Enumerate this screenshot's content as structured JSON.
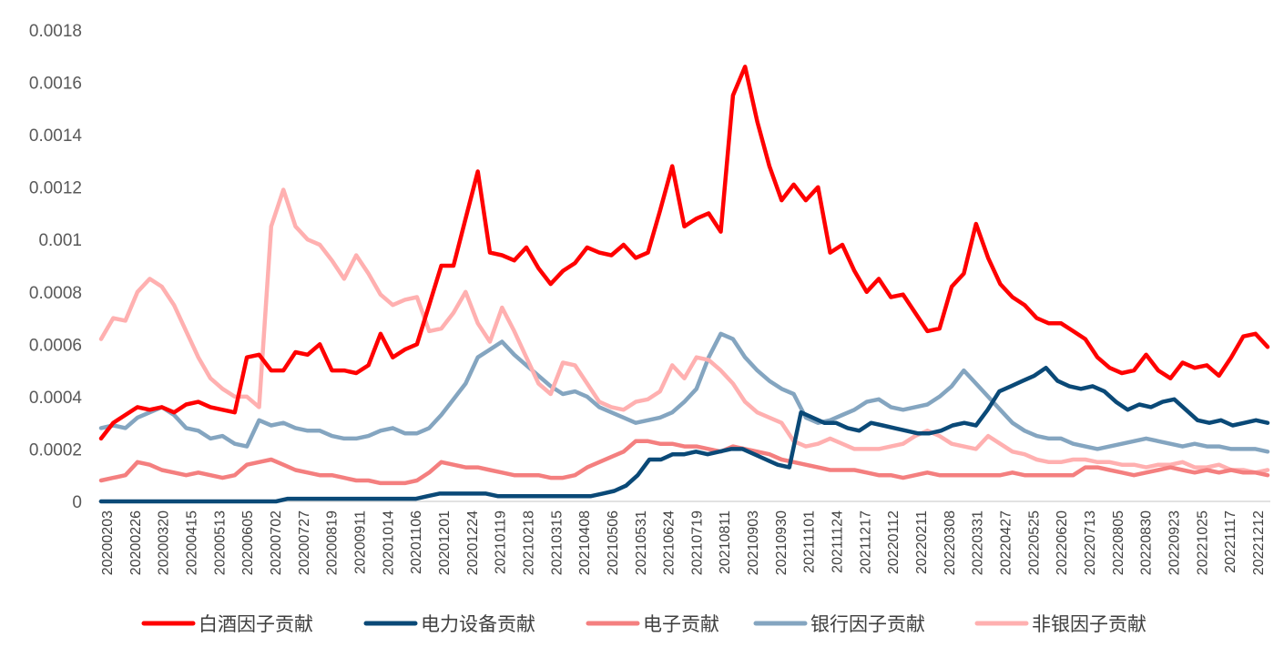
{
  "chart_data": {
    "type": "line",
    "title": "",
    "xlabel": "",
    "ylabel": "",
    "ylim": [
      0,
      0.0018
    ],
    "yticks": [
      "0",
      "0.0002",
      "0.0004",
      "0.0006",
      "0.0008",
      "0.001",
      "0.0012",
      "0.0014",
      "0.0016",
      "0.0018"
    ],
    "xticks": [
      "20200203",
      "20200226",
      "20200320",
      "20200415",
      "20200513",
      "20200605",
      "20200702",
      "20200727",
      "20200819",
      "20200911",
      "20201014",
      "20201106",
      "20201201",
      "20201224",
      "20210119",
      "20210218",
      "20210315",
      "20210408",
      "20210506",
      "20210531",
      "20210624",
      "20210719",
      "20210811",
      "20210903",
      "20210930",
      "20211101",
      "20211124",
      "20211217",
      "20220112",
      "20220211",
      "20220308",
      "20220331",
      "20220427",
      "20220525",
      "20220620",
      "20220713",
      "20220805",
      "20220830",
      "20220923",
      "20221025",
      "20221117",
      "20221212"
    ],
    "legend_position": "bottom",
    "series": [
      {
        "name": "白酒因子贡献",
        "color": "#ff0000",
        "values": [
          0.00024,
          0.0003,
          0.00033,
          0.00036,
          0.00035,
          0.00036,
          0.00034,
          0.00037,
          0.00038,
          0.00036,
          0.00035,
          0.00034,
          0.00055,
          0.00056,
          0.0005,
          0.0005,
          0.00057,
          0.00056,
          0.0006,
          0.0005,
          0.0005,
          0.00049,
          0.00052,
          0.00064,
          0.00055,
          0.00058,
          0.0006,
          0.00075,
          0.0009,
          0.0009,
          0.00108,
          0.00126,
          0.00095,
          0.00094,
          0.00092,
          0.00097,
          0.00089,
          0.00083,
          0.00088,
          0.00091,
          0.00097,
          0.00095,
          0.00094,
          0.00098,
          0.00093,
          0.00095,
          0.00111,
          0.00128,
          0.00105,
          0.00108,
          0.0011,
          0.00103,
          0.00155,
          0.00166,
          0.00145,
          0.00128,
          0.00115,
          0.00121,
          0.00115,
          0.0012,
          0.00095,
          0.00098,
          0.00088,
          0.0008,
          0.00085,
          0.00078,
          0.00079,
          0.00072,
          0.00065,
          0.00066,
          0.00082,
          0.00087,
          0.00106,
          0.00093,
          0.00083,
          0.00078,
          0.00075,
          0.0007,
          0.00068,
          0.00068,
          0.00065,
          0.00062,
          0.00055,
          0.00051,
          0.00049,
          0.0005,
          0.00056,
          0.0005,
          0.00047,
          0.00053,
          0.00051,
          0.00052,
          0.00048,
          0.00055,
          0.00063,
          0.00064,
          0.00059
        ]
      },
      {
        "name": "电力设备贡献",
        "color": "#0a4977",
        "values": [
          0.0,
          0.0,
          0.0,
          0.0,
          0.0,
          0.0,
          0.0,
          0.0,
          0.0,
          0.0,
          0.0,
          0.0,
          0.0,
          0.0,
          0.0,
          0.0,
          1e-05,
          1e-05,
          1e-05,
          1e-05,
          1e-05,
          1e-05,
          1e-05,
          1e-05,
          1e-05,
          1e-05,
          1e-05,
          1e-05,
          2e-05,
          3e-05,
          3e-05,
          3e-05,
          3e-05,
          3e-05,
          2e-05,
          2e-05,
          2e-05,
          2e-05,
          2e-05,
          2e-05,
          2e-05,
          2e-05,
          2e-05,
          3e-05,
          4e-05,
          6e-05,
          0.0001,
          0.00016,
          0.00016,
          0.00018,
          0.00018,
          0.00019,
          0.00018,
          0.00019,
          0.0002,
          0.0002,
          0.00018,
          0.00016,
          0.00014,
          0.00013,
          0.00034,
          0.00032,
          0.0003,
          0.0003,
          0.00028,
          0.00027,
          0.0003,
          0.00029,
          0.00028,
          0.00027,
          0.00026,
          0.00026,
          0.00027,
          0.00029,
          0.0003,
          0.00029,
          0.00035,
          0.00042,
          0.00044,
          0.00046,
          0.00048,
          0.00051,
          0.00046,
          0.00044,
          0.00043,
          0.00044,
          0.00042,
          0.00038,
          0.00035,
          0.00037,
          0.00036,
          0.00038,
          0.00039,
          0.00035,
          0.00031,
          0.0003,
          0.00031,
          0.00029,
          0.0003,
          0.00031,
          0.0003
        ]
      },
      {
        "name": "电子贡献",
        "color": "#f47f7f",
        "values": [
          8e-05,
          9e-05,
          0.0001,
          0.00015,
          0.00014,
          0.00012,
          0.00011,
          0.0001,
          0.00011,
          0.0001,
          9e-05,
          0.0001,
          0.00014,
          0.00015,
          0.00016,
          0.00014,
          0.00012,
          0.00011,
          0.0001,
          0.0001,
          9e-05,
          8e-05,
          8e-05,
          7e-05,
          7e-05,
          7e-05,
          8e-05,
          0.00011,
          0.00015,
          0.00014,
          0.00013,
          0.00013,
          0.00012,
          0.00011,
          0.0001,
          0.0001,
          0.0001,
          9e-05,
          9e-05,
          0.0001,
          0.00013,
          0.00015,
          0.00017,
          0.00019,
          0.00023,
          0.00023,
          0.00022,
          0.00022,
          0.00021,
          0.00021,
          0.0002,
          0.00019,
          0.00021,
          0.0002,
          0.00019,
          0.00018,
          0.00016,
          0.00015,
          0.00014,
          0.00013,
          0.00012,
          0.00012,
          0.00012,
          0.00011,
          0.0001,
          0.0001,
          9e-05,
          0.0001,
          0.00011,
          0.0001,
          0.0001,
          0.0001,
          0.0001,
          0.0001,
          0.0001,
          0.00011,
          0.0001,
          0.0001,
          0.0001,
          0.0001,
          0.0001,
          0.00013,
          0.00013,
          0.00012,
          0.00011,
          0.0001,
          0.00011,
          0.00012,
          0.00013,
          0.00012,
          0.00011,
          0.00012,
          0.00011,
          0.00012,
          0.00011,
          0.00011,
          0.0001
        ]
      },
      {
        "name": "银行因子贡献",
        "color": "#84a5c0",
        "values": [
          0.00028,
          0.00029,
          0.00028,
          0.00032,
          0.00034,
          0.00036,
          0.00033,
          0.00028,
          0.00027,
          0.00024,
          0.00025,
          0.00022,
          0.00021,
          0.00031,
          0.00029,
          0.0003,
          0.00028,
          0.00027,
          0.00027,
          0.00025,
          0.00024,
          0.00024,
          0.00025,
          0.00027,
          0.00028,
          0.00026,
          0.00026,
          0.00028,
          0.00033,
          0.00039,
          0.00045,
          0.00055,
          0.00058,
          0.00061,
          0.00056,
          0.00052,
          0.00048,
          0.00044,
          0.00041,
          0.00042,
          0.0004,
          0.00036,
          0.00034,
          0.00032,
          0.0003,
          0.00031,
          0.00032,
          0.00034,
          0.00038,
          0.00043,
          0.00055,
          0.00064,
          0.00062,
          0.00055,
          0.0005,
          0.00046,
          0.00043,
          0.00041,
          0.00032,
          0.0003,
          0.00031,
          0.00033,
          0.00035,
          0.00038,
          0.00039,
          0.00036,
          0.00035,
          0.00036,
          0.00037,
          0.0004,
          0.00044,
          0.0005,
          0.00045,
          0.0004,
          0.00035,
          0.0003,
          0.00027,
          0.00025,
          0.00024,
          0.00024,
          0.00022,
          0.00021,
          0.0002,
          0.00021,
          0.00022,
          0.00023,
          0.00024,
          0.00023,
          0.00022,
          0.00021,
          0.00022,
          0.00021,
          0.00021,
          0.0002,
          0.0002,
          0.0002,
          0.00019
        ]
      },
      {
        "name": "非银因子贡献",
        "color": "#ffb0b0",
        "values": [
          0.00062,
          0.0007,
          0.00069,
          0.0008,
          0.00085,
          0.00082,
          0.00075,
          0.00065,
          0.00055,
          0.00047,
          0.00043,
          0.0004,
          0.0004,
          0.00036,
          0.00105,
          0.00119,
          0.00105,
          0.001,
          0.00098,
          0.00092,
          0.00085,
          0.00094,
          0.00087,
          0.00079,
          0.00075,
          0.00077,
          0.00078,
          0.00065,
          0.00066,
          0.00072,
          0.0008,
          0.00068,
          0.00061,
          0.00074,
          0.00065,
          0.00055,
          0.00045,
          0.00041,
          0.00053,
          0.00052,
          0.00045,
          0.00038,
          0.00036,
          0.00035,
          0.00038,
          0.00039,
          0.00042,
          0.00052,
          0.00047,
          0.00055,
          0.00054,
          0.0005,
          0.00045,
          0.00038,
          0.00034,
          0.00032,
          0.0003,
          0.00023,
          0.00021,
          0.00022,
          0.00024,
          0.00022,
          0.0002,
          0.0002,
          0.0002,
          0.00021,
          0.00022,
          0.00025,
          0.00027,
          0.00025,
          0.00022,
          0.00021,
          0.0002,
          0.00025,
          0.00022,
          0.00019,
          0.00018,
          0.00016,
          0.00015,
          0.00015,
          0.00016,
          0.00016,
          0.00015,
          0.00015,
          0.00014,
          0.00014,
          0.00013,
          0.00014,
          0.00014,
          0.00015,
          0.00013,
          0.00013,
          0.00014,
          0.00012,
          0.00012,
          0.00011,
          0.00012
        ]
      }
    ]
  }
}
